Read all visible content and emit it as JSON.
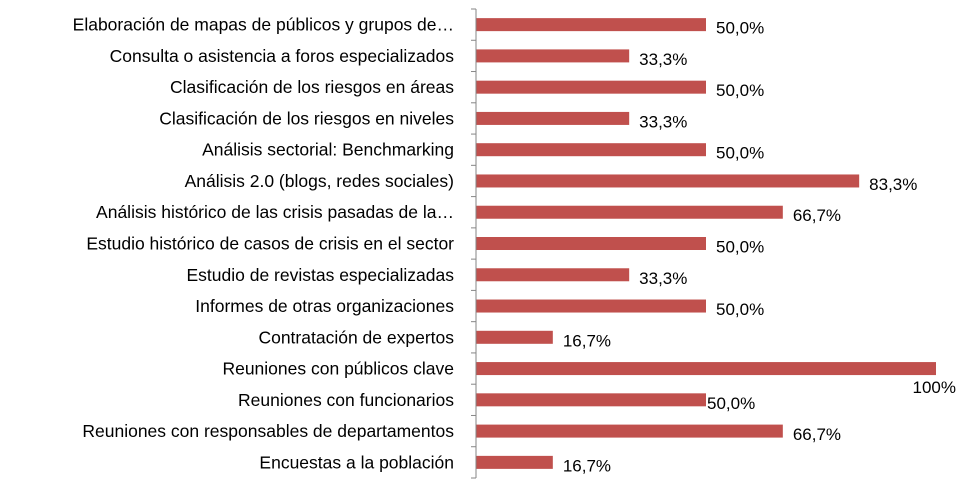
{
  "chart_data": {
    "type": "bar",
    "orientation": "horizontal",
    "categories": [
      "Elaboración de mapas  de públicos y grupos de…",
      "Consulta o asistencia a foros especializados",
      "Clasificación de los riesgos en áreas",
      "Clasificación de los riesgos en niveles",
      "Análisis sectorial: Benchmarking",
      "Análisis 2.0 (blogs, redes sociales)",
      "Análisis histórico de las crisis pasadas  de la…",
      "Estudio histórico de casos de crisis en el sector",
      "Estudio de revistas especializadas",
      "Informes de otras organizaciones",
      "Contratación de expertos",
      "Reuniones con públicos clave",
      "Reuniones con funcionarios",
      "Reuniones con responsables de departamentos",
      "Encuestas a la población"
    ],
    "values": [
      50.0,
      33.3,
      50.0,
      33.3,
      50.0,
      83.3,
      66.7,
      50.0,
      33.3,
      50.0,
      16.7,
      100,
      50.0,
      66.7,
      16.7
    ],
    "value_labels": [
      "50,0%",
      "33,3%",
      "50,0%",
      "33,3%",
      "50,0%",
      "83,3%",
      "66,7%",
      "50,0%",
      "33,3%",
      "50,0%",
      "16,7%",
      "100%",
      "50,0%",
      "66,7%",
      "16,7%"
    ],
    "xlim": [
      0,
      100
    ],
    "bar_color": "#c0504d",
    "axis_color": "#868686",
    "grid": false,
    "legend": "none"
  }
}
